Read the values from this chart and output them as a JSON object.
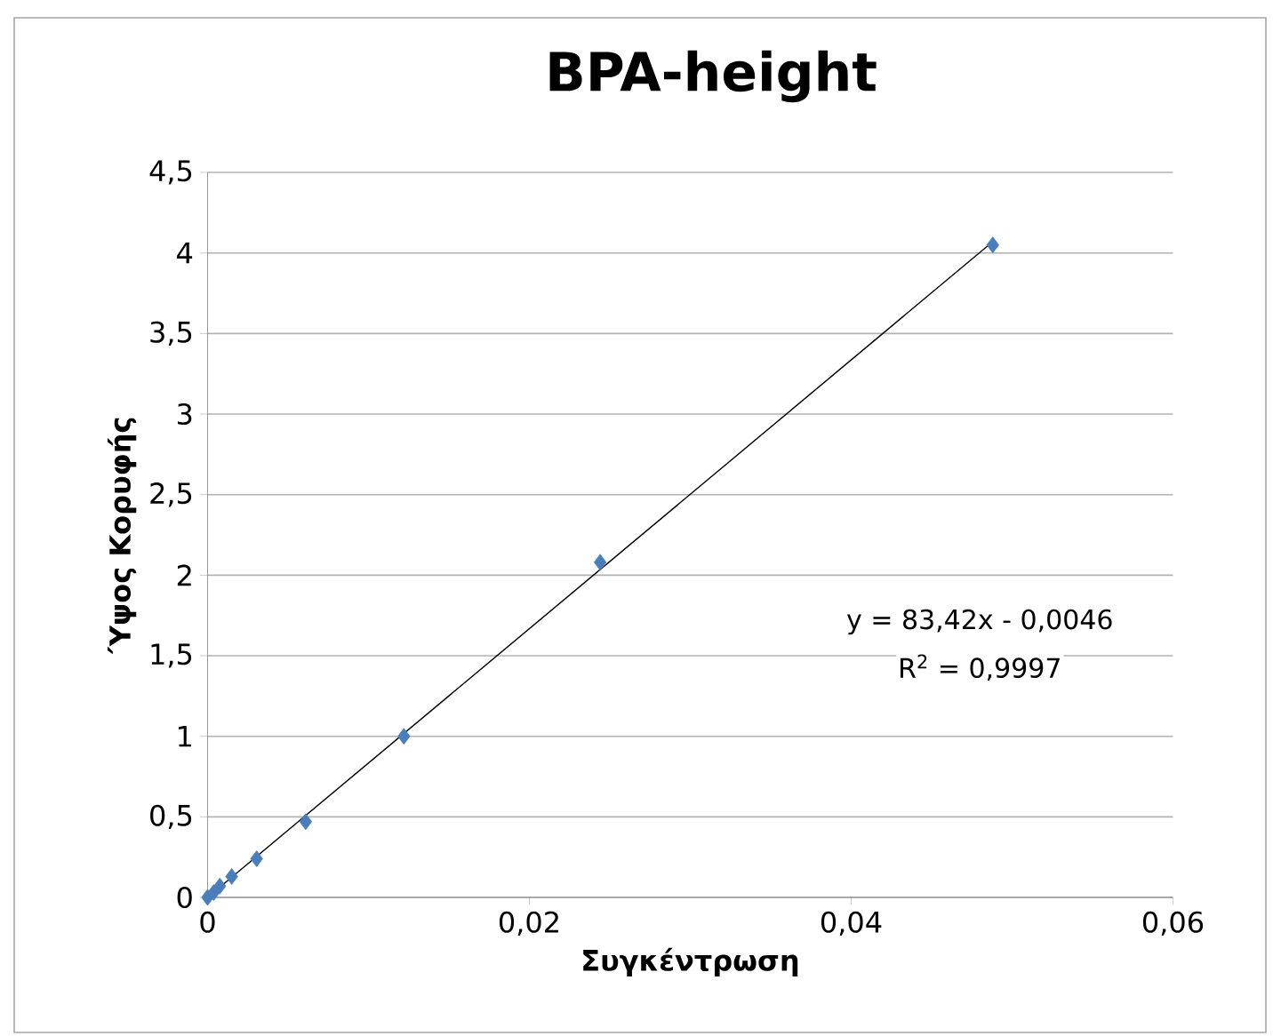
{
  "chart_data": {
    "type": "scatter",
    "title": "BPA-height",
    "xlabel": "Συγκέντρωση",
    "ylabel": "Ύψος Κορυφής",
    "series": [
      {
        "color": "#4a7ebb",
        "x": [
          0,
          0.00038,
          0.00076,
          0.0015,
          0.00305,
          0.0061,
          0.0122,
          0.0244,
          0.0488
        ],
        "values": [
          0.0,
          0.03,
          0.07,
          0.13,
          0.24,
          0.47,
          1.0,
          2.08,
          4.05
        ]
      },
      {
        "type": "line",
        "color": "#000000",
        "marker": "none",
        "x": [
          0,
          0.0488
        ],
        "values": [
          0,
          4.07
        ]
      }
    ],
    "xlim": [
      0,
      0.06
    ],
    "ylim": [
      0,
      4.5
    ],
    "xticks": [
      0,
      {
        "value": 0.02,
        "label": "0,02"
      },
      {
        "value": 0.04,
        "label": "0,04"
      },
      {
        "value": 0.06,
        "label": "0,06"
      }
    ],
    "yticks": [
      0,
      {
        "value": 0.5,
        "label": "0,5"
      },
      1,
      {
        "value": 1.5,
        "label": "1,5"
      },
      2,
      {
        "value": 2.5,
        "label": "2,5"
      },
      3,
      {
        "value": 3.5,
        "label": "3,5"
      },
      4,
      {
        "value": 4.5,
        "label": "4,5"
      }
    ],
    "grid": "y",
    "marker": "diamond",
    "annotations": [
      "y = 83,42x - 0,0046",
      "R$^{2}$ = 0,9997"
    ]
  }
}
